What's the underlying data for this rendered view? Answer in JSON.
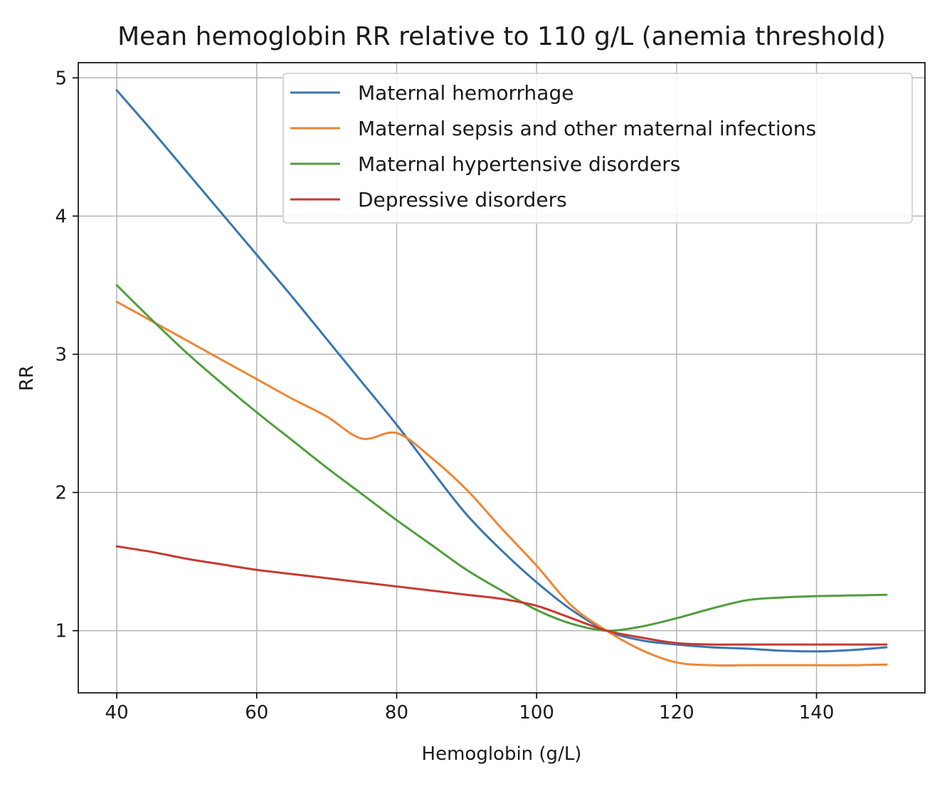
{
  "chart_data": {
    "type": "line",
    "title": "Mean hemoglobin RR relative to 110 g/L (anemia threshold)",
    "xlabel": "Hemoglobin (g/L)",
    "ylabel": "RR",
    "xlim": [
      34.5,
      155.5
    ],
    "ylim": [
      0.55,
      5.11
    ],
    "xticks": [
      40,
      60,
      80,
      100,
      120,
      140
    ],
    "yticks": [
      1,
      2,
      3,
      4,
      5
    ],
    "grid": true,
    "legend_position": "upper-right",
    "x": [
      40,
      45,
      50,
      55,
      60,
      65,
      70,
      75,
      80,
      85,
      90,
      95,
      100,
      105,
      110,
      115,
      120,
      125,
      130,
      135,
      140,
      145,
      150
    ],
    "series": [
      {
        "name": "Maternal hemorrhage",
        "color": "#3b75af",
        "values": [
          4.91,
          4.62,
          4.32,
          4.02,
          3.72,
          3.42,
          3.11,
          2.8,
          2.49,
          2.16,
          1.84,
          1.58,
          1.35,
          1.15,
          1.0,
          0.93,
          0.9,
          0.88,
          0.87,
          0.855,
          0.85,
          0.86,
          0.88
        ]
      },
      {
        "name": "Maternal sepsis and other maternal infections",
        "color": "#ef8636",
        "values": [
          3.38,
          3.24,
          3.1,
          2.96,
          2.82,
          2.68,
          2.55,
          2.39,
          2.43,
          2.25,
          2.02,
          1.74,
          1.47,
          1.18,
          1.0,
          0.86,
          0.77,
          0.75,
          0.75,
          0.75,
          0.75,
          0.75,
          0.755
        ]
      },
      {
        "name": "Maternal hypertensive disorders",
        "color": "#519e3e",
        "values": [
          3.5,
          3.25,
          3.01,
          2.79,
          2.58,
          2.38,
          2.18,
          1.99,
          1.8,
          1.62,
          1.44,
          1.29,
          1.15,
          1.05,
          1.0,
          1.03,
          1.09,
          1.16,
          1.22,
          1.24,
          1.25,
          1.255,
          1.26
        ]
      },
      {
        "name": "Depressive disorders",
        "color": "#c53a32",
        "values": [
          1.61,
          1.57,
          1.52,
          1.48,
          1.44,
          1.41,
          1.38,
          1.35,
          1.32,
          1.29,
          1.26,
          1.23,
          1.18,
          1.09,
          1.0,
          0.95,
          0.91,
          0.9,
          0.9,
          0.9,
          0.9,
          0.9,
          0.9
        ]
      }
    ]
  }
}
